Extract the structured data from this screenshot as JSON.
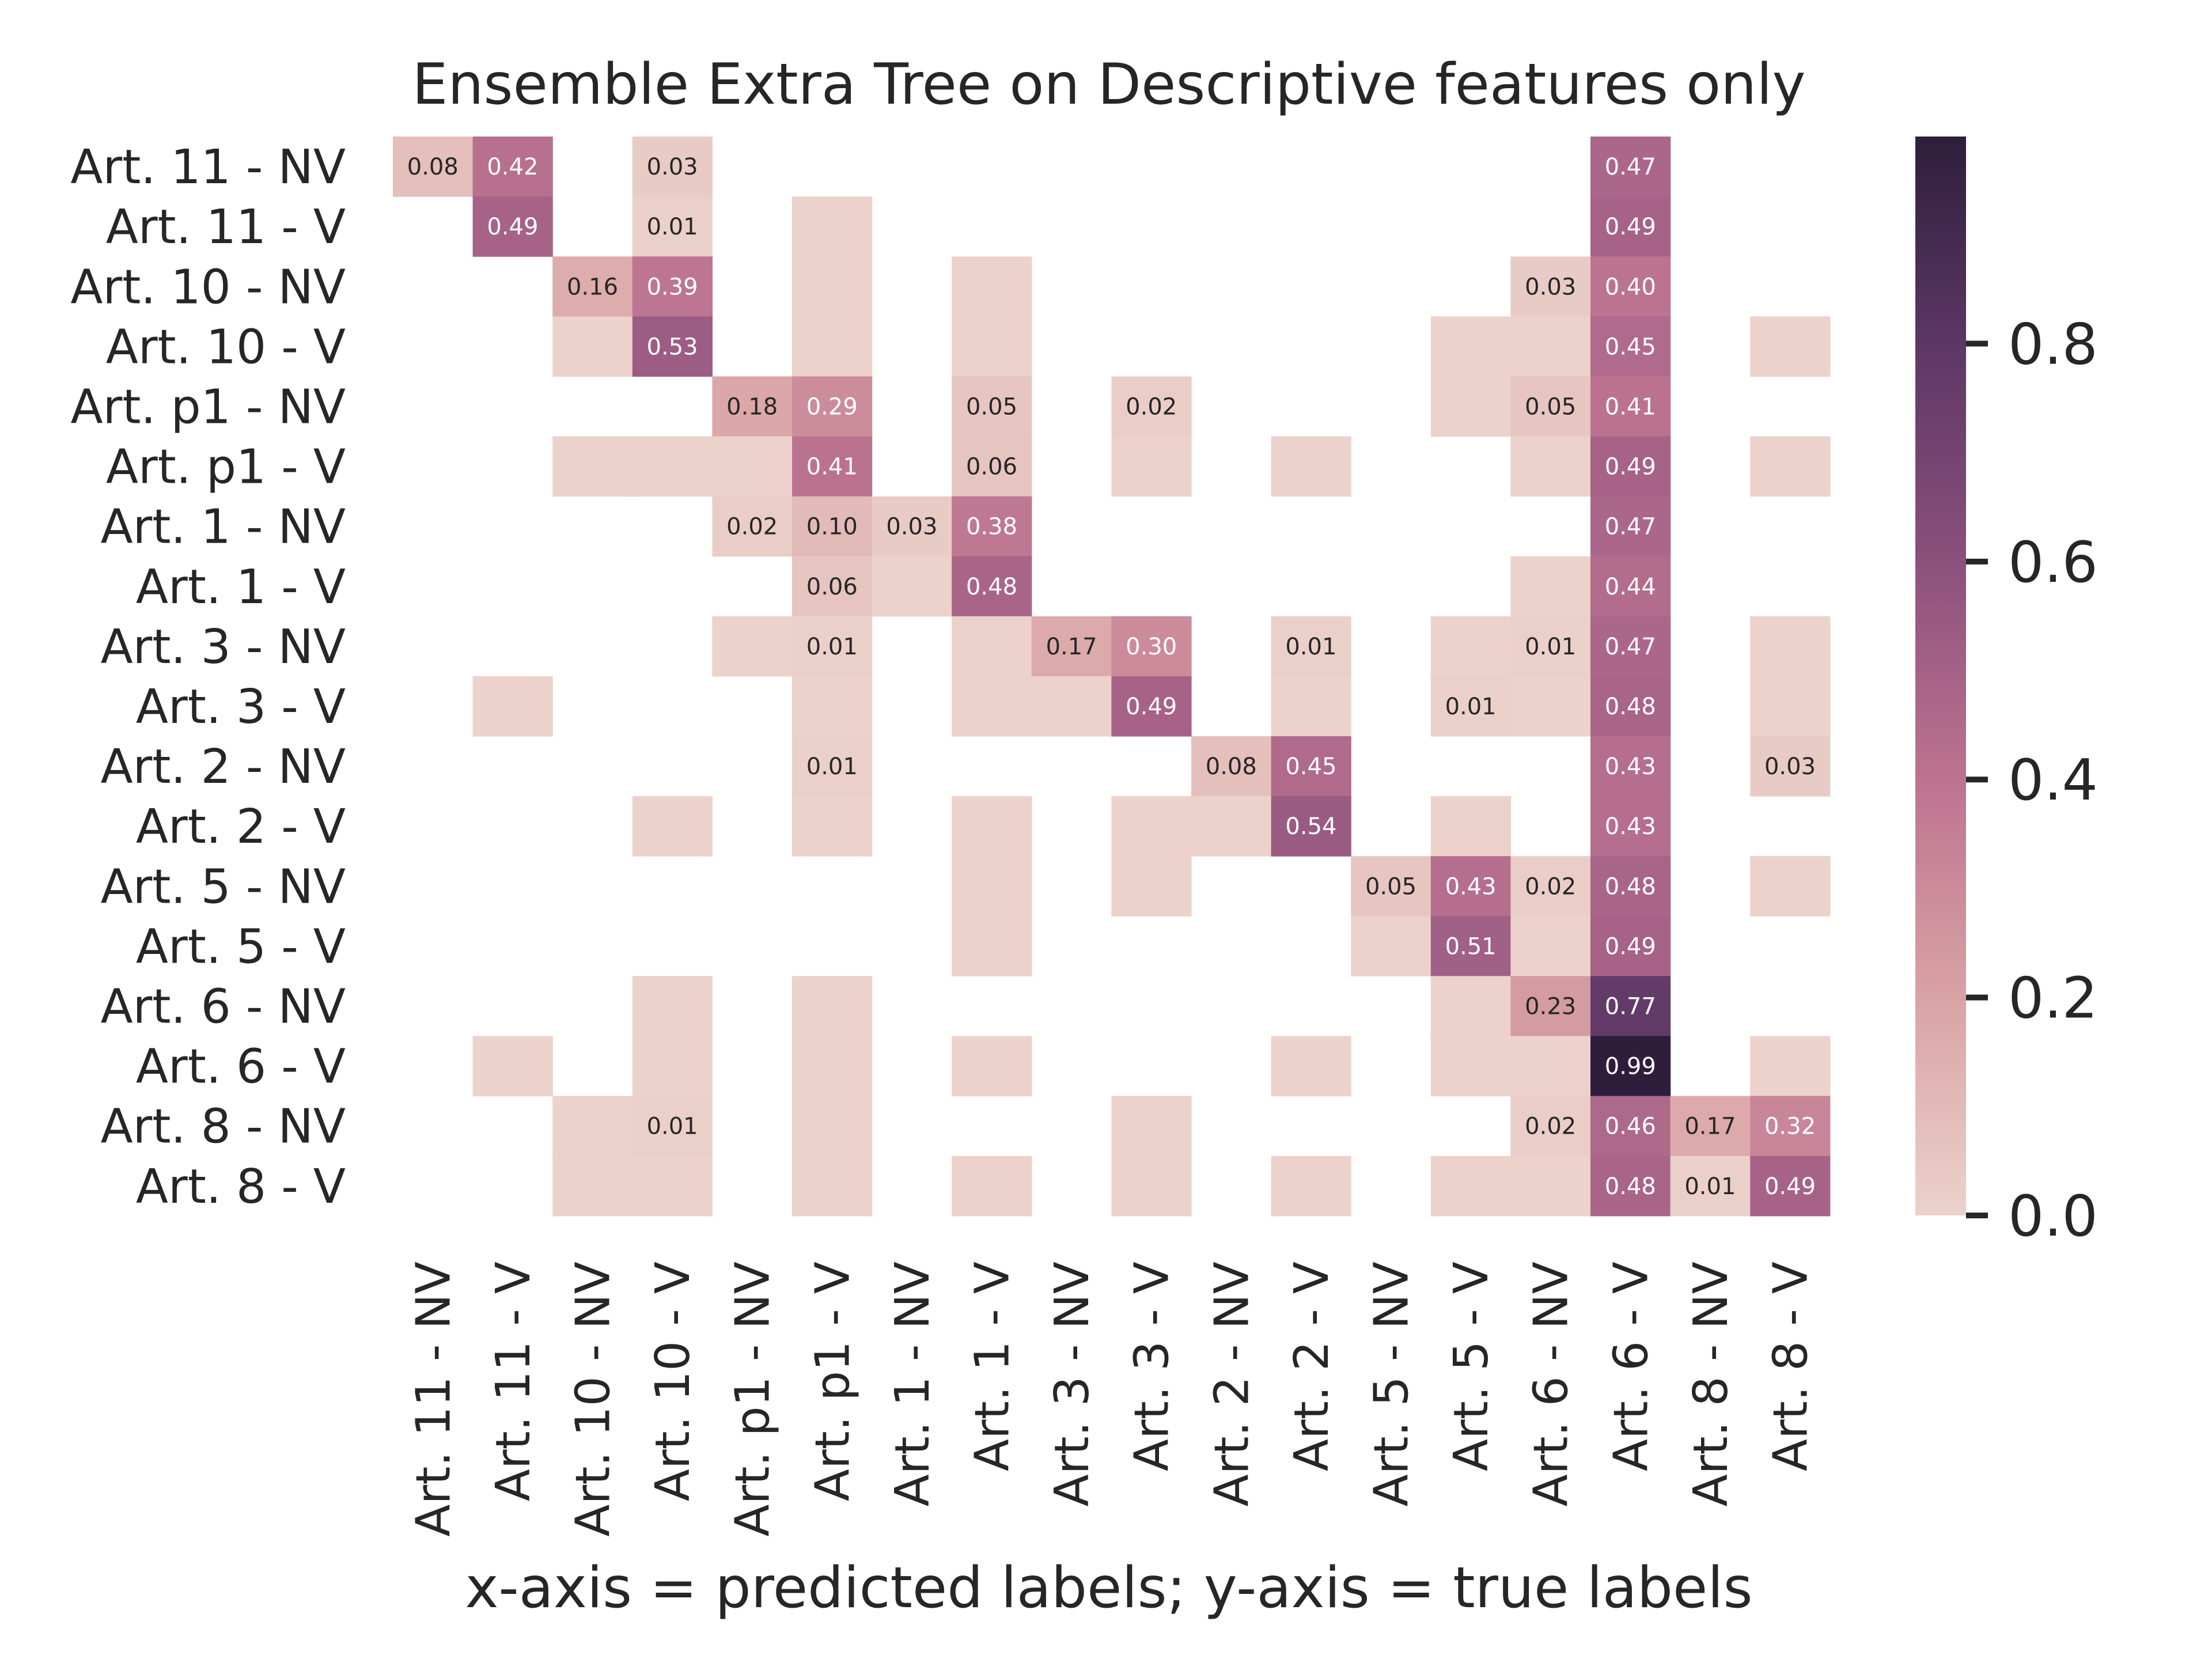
{
  "chart_data": {
    "type": "heatmap",
    "title": "Ensemble Extra Tree on Descriptive features only",
    "xlabel": "x-axis = predicted labels; y-axis = true labels",
    "ylabel": "",
    "x_categories": [
      "Art. 11 - NV",
      "Art. 11 - V",
      "Art. 10 - NV",
      "Art. 10 - V",
      "Art. p1 - NV",
      "Art. p1 - V",
      "Art. 1 - NV",
      "Art. 1 - V",
      "Art. 3 - NV",
      "Art. 3 - V",
      "Art. 2 - NV",
      "Art. 2 - V",
      "Art. 5 - NV",
      "Art. 5 - V",
      "Art. 6 - NV",
      "Art. 6 - V",
      "Art. 8 - NV",
      "Art. 8 - V"
    ],
    "y_categories": [
      "Art. 11 - NV",
      "Art. 11 - V",
      "Art. 10 - NV",
      "Art. 10 - V",
      "Art. p1 - NV",
      "Art. p1 - V",
      "Art. 1 - NV",
      "Art. 1 - V",
      "Art. 3 - NV",
      "Art. 3 - V",
      "Art. 2 - NV",
      "Art. 2 - V",
      "Art. 5 - NV",
      "Art. 5 - V",
      "Art. 6 - NV",
      "Art. 6 - V",
      "Art. 8 - NV",
      "Art. 8 - V"
    ],
    "values": [
      [
        0.08,
        0.42,
        null,
        0.03,
        null,
        null,
        null,
        null,
        null,
        null,
        null,
        null,
        null,
        null,
        null,
        0.47,
        null,
        null
      ],
      [
        null,
        0.49,
        null,
        0.01,
        null,
        0.0,
        null,
        null,
        null,
        null,
        null,
        null,
        null,
        null,
        null,
        0.49,
        null,
        null
      ],
      [
        null,
        null,
        0.16,
        0.39,
        null,
        0.0,
        null,
        0.0,
        null,
        null,
        null,
        null,
        null,
        null,
        0.03,
        0.4,
        null,
        null
      ],
      [
        null,
        null,
        0.0,
        0.53,
        null,
        0.0,
        null,
        0.0,
        null,
        null,
        null,
        null,
        null,
        0.0,
        0.0,
        0.45,
        null,
        0.0
      ],
      [
        null,
        null,
        null,
        null,
        0.18,
        0.29,
        null,
        0.05,
        null,
        0.02,
        null,
        null,
        null,
        0.0,
        0.05,
        0.41,
        null,
        null
      ],
      [
        null,
        null,
        0.0,
        0.0,
        0.0,
        0.41,
        null,
        0.06,
        null,
        0.0,
        null,
        0.0,
        null,
        null,
        0.0,
        0.49,
        null,
        0.0
      ],
      [
        null,
        null,
        null,
        null,
        0.02,
        0.1,
        0.03,
        0.38,
        null,
        null,
        null,
        null,
        null,
        null,
        null,
        0.47,
        null,
        null
      ],
      [
        null,
        null,
        null,
        null,
        null,
        0.06,
        0.0,
        0.48,
        null,
        null,
        null,
        null,
        null,
        null,
        0.0,
        0.44,
        null,
        null
      ],
      [
        null,
        null,
        null,
        null,
        0.0,
        0.01,
        null,
        0.0,
        0.17,
        0.3,
        null,
        0.01,
        null,
        0.0,
        0.01,
        0.47,
        null,
        0.0
      ],
      [
        null,
        0.0,
        null,
        null,
        null,
        0.0,
        null,
        0.0,
        0.0,
        0.49,
        null,
        0.0,
        null,
        0.01,
        0.0,
        0.48,
        null,
        0.0
      ],
      [
        null,
        null,
        null,
        null,
        null,
        0.01,
        null,
        null,
        null,
        null,
        0.08,
        0.45,
        null,
        null,
        null,
        0.43,
        null,
        0.03
      ],
      [
        null,
        null,
        null,
        0.0,
        null,
        0.0,
        null,
        0.0,
        null,
        0.0,
        0.0,
        0.54,
        null,
        0.0,
        null,
        0.43,
        null,
        null
      ],
      [
        null,
        null,
        null,
        null,
        null,
        null,
        null,
        0.0,
        null,
        0.0,
        null,
        null,
        0.05,
        0.43,
        0.02,
        0.48,
        null,
        0.0
      ],
      [
        null,
        null,
        null,
        null,
        null,
        null,
        null,
        0.0,
        null,
        null,
        null,
        null,
        0.0,
        0.51,
        0.0,
        0.49,
        null,
        null
      ],
      [
        null,
        null,
        null,
        0.0,
        null,
        0.0,
        null,
        null,
        null,
        null,
        null,
        null,
        null,
        0.0,
        0.23,
        0.77,
        null,
        null
      ],
      [
        null,
        0.0,
        null,
        0.0,
        null,
        0.0,
        null,
        0.0,
        null,
        null,
        null,
        0.0,
        null,
        0.0,
        0.0,
        0.99,
        null,
        0.0
      ],
      [
        null,
        null,
        0.0,
        0.01,
        null,
        0.0,
        null,
        null,
        null,
        0.0,
        null,
        null,
        null,
        null,
        0.02,
        0.46,
        0.17,
        0.32
      ],
      [
        null,
        null,
        0.0,
        0.0,
        null,
        0.0,
        null,
        0.0,
        null,
        0.0,
        null,
        0.0,
        null,
        0.0,
        0.0,
        0.48,
        0.01,
        0.49
      ]
    ],
    "colorbar": {
      "min": 0.0,
      "max": 0.99,
      "ticks": [
        "0.0",
        "0.2",
        "0.4",
        "0.6",
        "0.8"
      ],
      "colors": [
        "#ecd2cb",
        "#d9a3a5",
        "#bd7490",
        "#8d517d",
        "#5e3866",
        "#2e1e3b"
      ]
    },
    "annotation_threshold_min": 0.005,
    "grid": false,
    "legend": "colorbar-right"
  }
}
